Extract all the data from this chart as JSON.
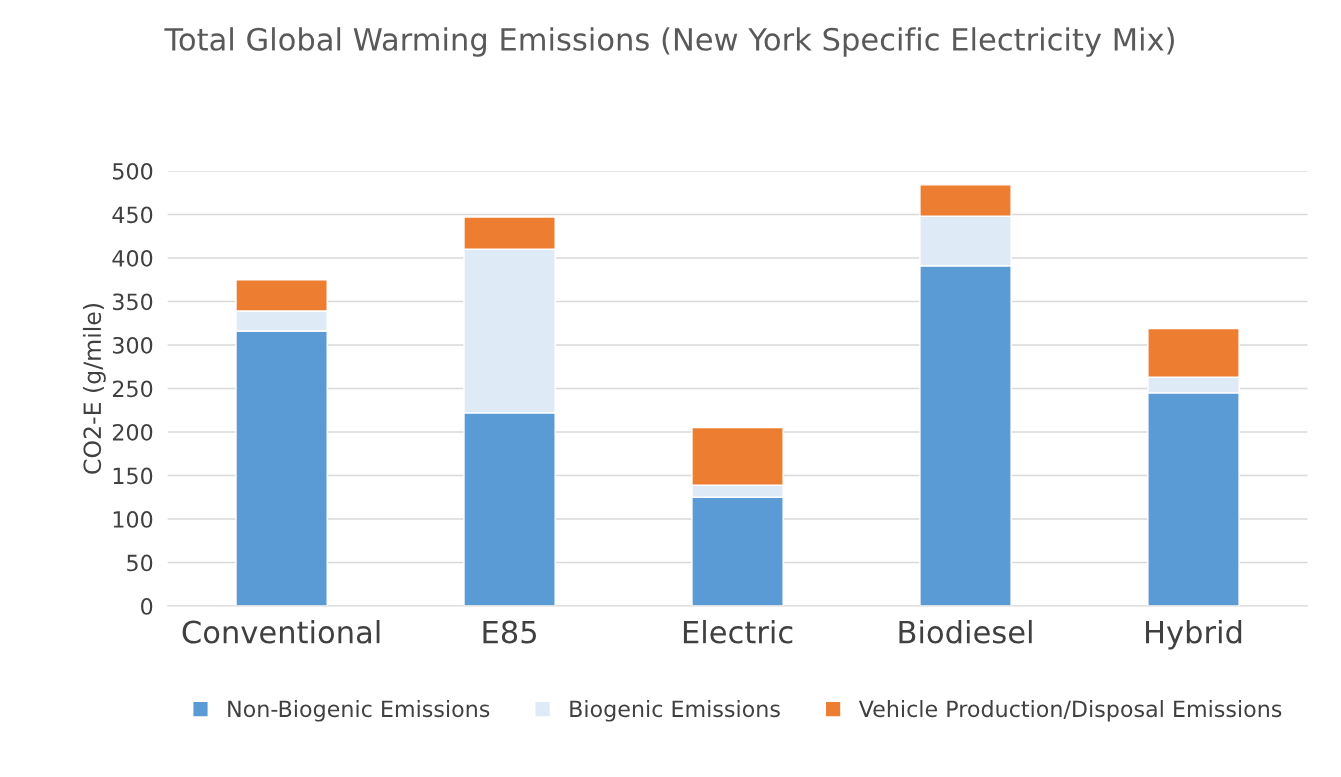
{
  "chart_data": {
    "type": "bar",
    "title": "Total Global Warming Emissions (New York Specific Electricity Mix)",
    "ylabel": "CO2-E (g/mile)",
    "categories": [
      "Conventional",
      "E85",
      "Electric",
      "Biodiesel",
      "Hybrid"
    ],
    "stacked": true,
    "series": [
      {
        "name": "Non-Biogenic Emissions",
        "color": "#5b9bd5",
        "values": [
          316,
          222,
          125,
          391,
          245
        ]
      },
      {
        "name": "Biogenic Emissions",
        "color": "#deebf7",
        "values": [
          23,
          188,
          14,
          57,
          18
        ]
      },
      {
        "name": "Vehicle Production/Disposal Emissions",
        "color": "#ed7d31",
        "values": [
          36,
          37,
          66,
          36,
          56
        ]
      }
    ],
    "ylim": [
      0,
      500
    ],
    "yticks": [
      0,
      50,
      100,
      150,
      200,
      250,
      300,
      350,
      400,
      450,
      500
    ],
    "grid": "y",
    "legend": "bottom"
  }
}
